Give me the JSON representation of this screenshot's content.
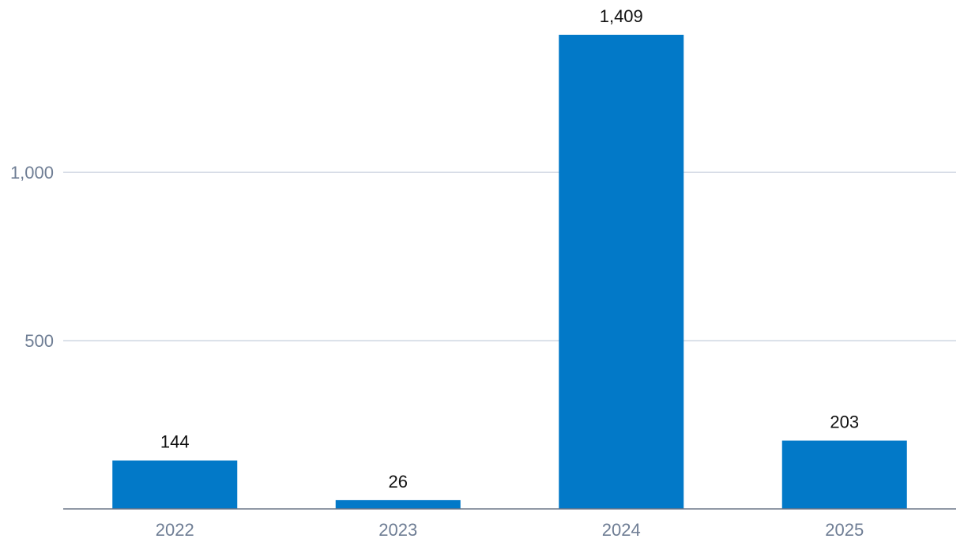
{
  "chart_data": {
    "type": "bar",
    "categories": [
      "2022",
      "2023",
      "2024",
      "2025"
    ],
    "values": [
      144,
      26,
      1409,
      203
    ],
    "value_labels": [
      "144",
      "26",
      "1,409",
      "203"
    ],
    "y_ticks": [
      {
        "value": 500,
        "label": "500"
      },
      {
        "value": 1000,
        "label": "1,000"
      }
    ],
    "ylim": [
      0,
      1409
    ],
    "grid": true,
    "legend": "none",
    "colors": {
      "bar": "#0279c8",
      "grid": "#cfd6e2",
      "axis": "#6b7688"
    }
  }
}
